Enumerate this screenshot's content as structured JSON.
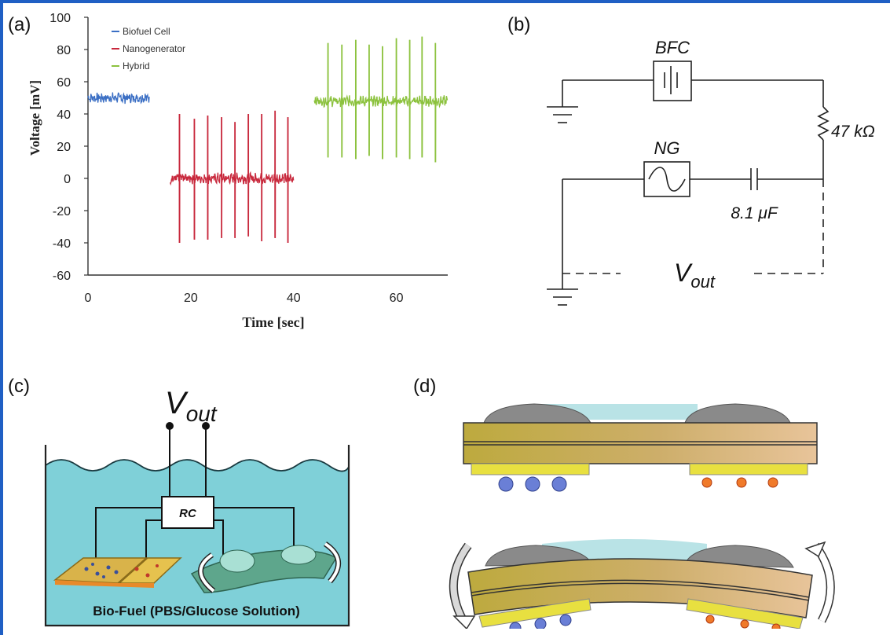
{
  "figure": {
    "accent_color": "#1f5fc4",
    "panels": {
      "a": {
        "label": "(a)"
      },
      "b": {
        "label": "(b)"
      },
      "c": {
        "label": "(c)"
      },
      "d": {
        "label": "(d)"
      }
    }
  },
  "chart_data": {
    "type": "line",
    "xlabel": "Time [sec]",
    "ylabel": "Voltage [mV]",
    "xlim": [
      0,
      70
    ],
    "ylim": [
      -60,
      100
    ],
    "xticks": [
      "0",
      "20",
      "40",
      "60"
    ],
    "yticks": [
      "100",
      "80",
      "60",
      "40",
      "20",
      "0",
      "-20",
      "-40",
      "-60"
    ],
    "legend_position": "top-left",
    "series": [
      {
        "name": "Biofuel Cell",
        "color": "#3b6fc4",
        "x_range": [
          0,
          12
        ],
        "baseline": 50,
        "noise": 2.5,
        "spikes": []
      },
      {
        "name": "Nanogenerator",
        "color": "#c8283c",
        "x_range": [
          16,
          40
        ],
        "baseline": 0,
        "noise": 2.5,
        "spikes": [
          {
            "x": 17.8,
            "high": 40,
            "low": -40
          },
          {
            "x": 20.7,
            "high": 37,
            "low": -38
          },
          {
            "x": 23.3,
            "high": 39,
            "low": -38
          },
          {
            "x": 26.0,
            "high": 38,
            "low": -37
          },
          {
            "x": 28.6,
            "high": 35,
            "low": -37
          },
          {
            "x": 31.2,
            "high": 40,
            "low": -36
          },
          {
            "x": 33.8,
            "high": 40,
            "low": -39
          },
          {
            "x": 36.4,
            "high": 42,
            "low": -37
          },
          {
            "x": 38.9,
            "high": 38,
            "low": -40
          }
        ]
      },
      {
        "name": "Hybrid",
        "color": "#8cc23e",
        "x_range": [
          44,
          70
        ],
        "baseline": 48,
        "noise": 2.5,
        "spikes": [
          {
            "x": 46.7,
            "high": 84,
            "low": 13
          },
          {
            "x": 49.4,
            "high": 83,
            "low": 13
          },
          {
            "x": 52.1,
            "high": 86,
            "low": 12
          },
          {
            "x": 54.7,
            "high": 83,
            "low": 14
          },
          {
            "x": 57.3,
            "high": 82,
            "low": 12
          },
          {
            "x": 60.0,
            "high": 87,
            "low": 13
          },
          {
            "x": 62.6,
            "high": 86,
            "low": 12
          },
          {
            "x": 65.0,
            "high": 88,
            "low": 13
          },
          {
            "x": 67.6,
            "high": 84,
            "low": 10
          }
        ]
      }
    ]
  },
  "circuit": {
    "bfc_label": "BFC",
    "ng_label": "NG",
    "resistor_label": "47 kΩ",
    "capacitor_label": "8.1 μF",
    "vout_main": "V",
    "vout_sub": "out"
  },
  "schematic_c": {
    "vout_main": "V",
    "vout_sub": "out",
    "box_label": "RC",
    "caption": "Bio-Fuel  (PBS/Glucose Solution)",
    "water_color": "#7fd0d8"
  }
}
